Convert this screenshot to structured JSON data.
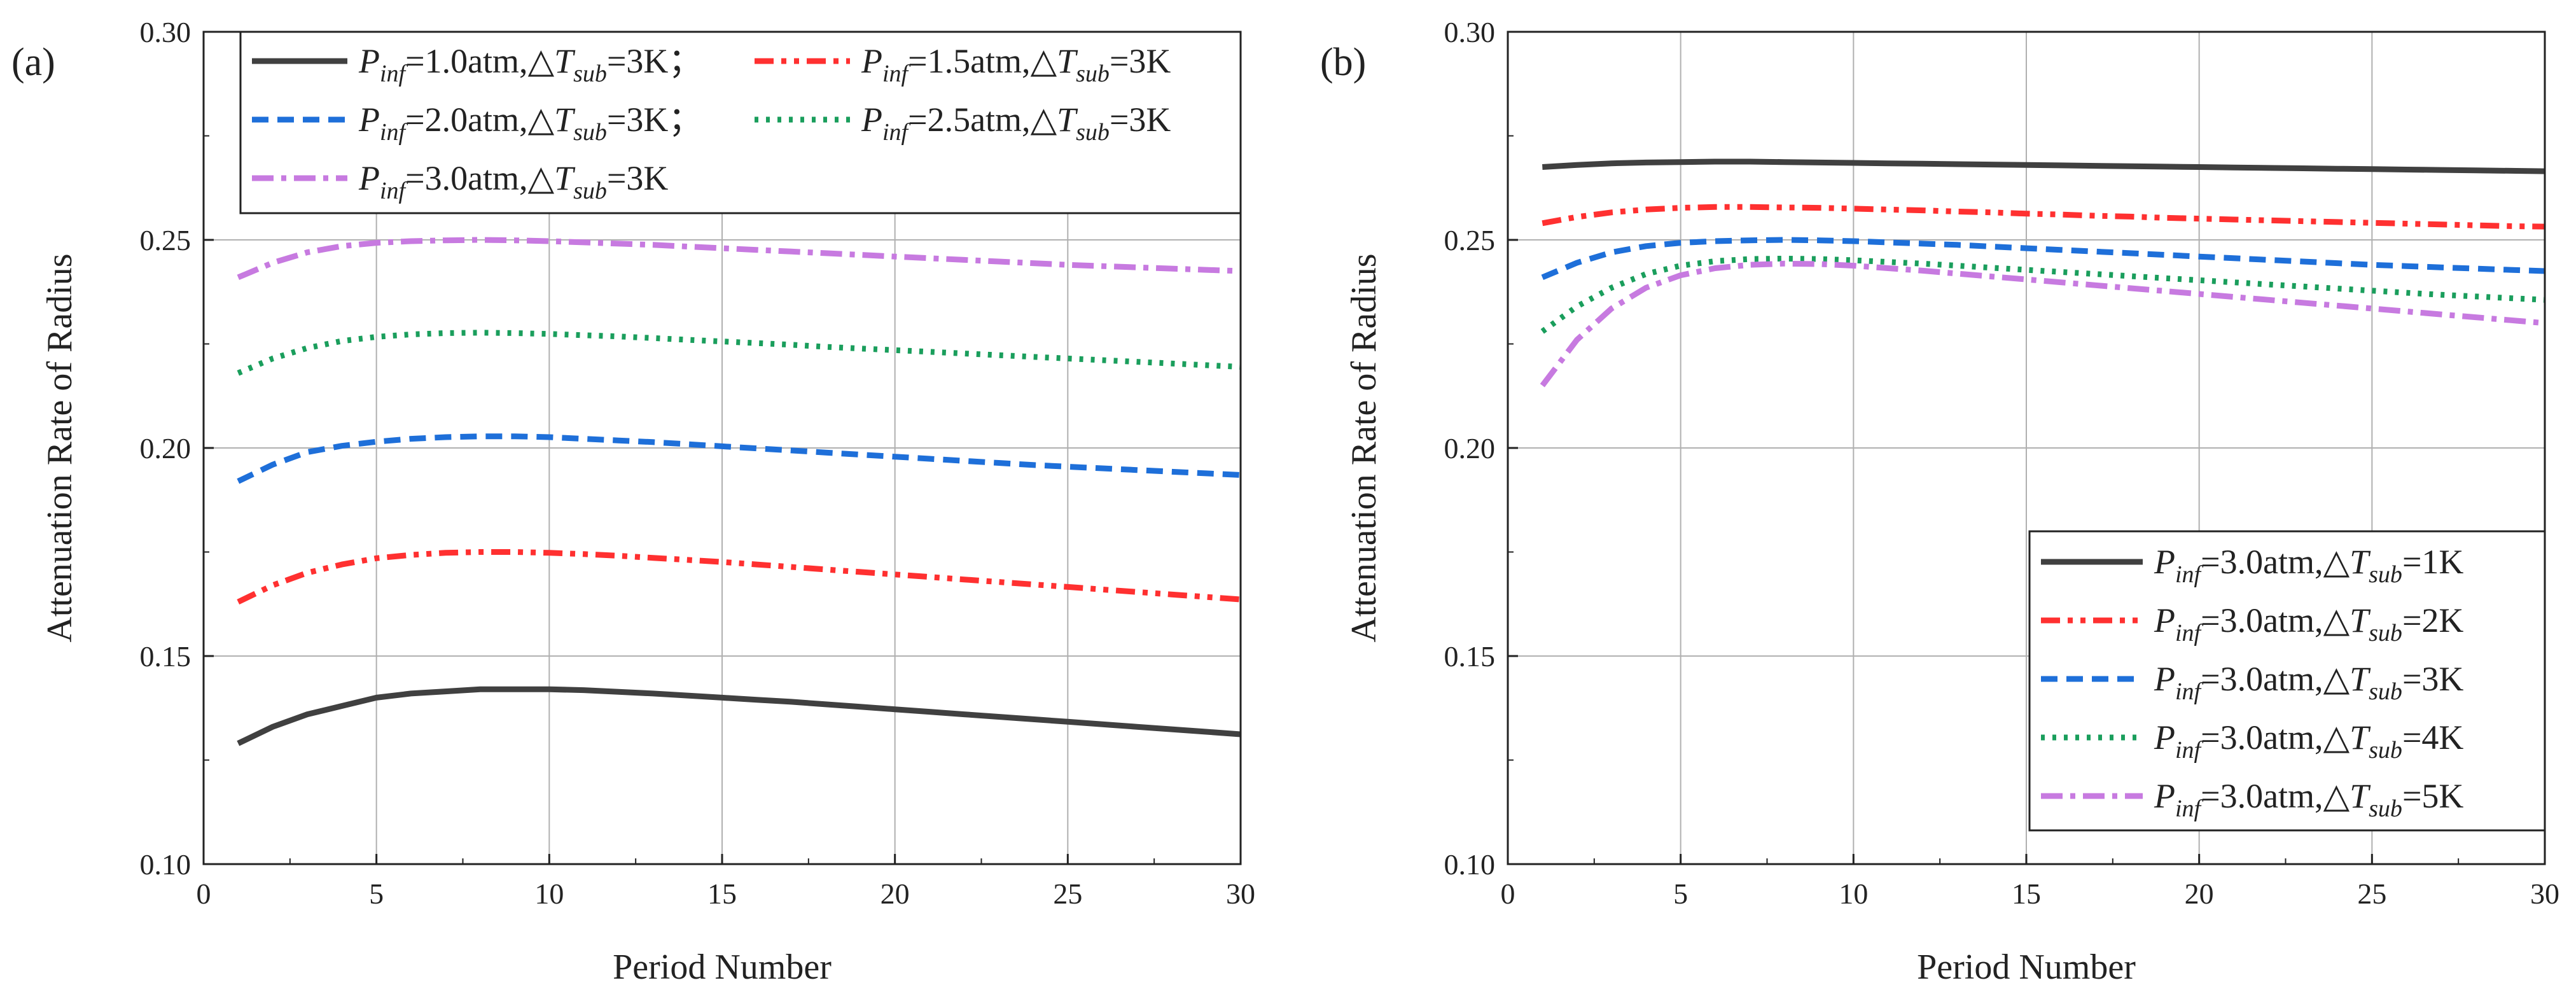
{
  "chart_data": [
    {
      "panel_label": "(a)",
      "type": "line",
      "xlabel": "Period Number",
      "ylabel": "Attenuation Rate of Radius",
      "xlim": [
        0,
        30
      ],
      "ylim": [
        0.1,
        0.3
      ],
      "xticks": [
        "0",
        "5",
        "10",
        "15",
        "20",
        "25",
        "30"
      ],
      "yticks": [
        "0.10",
        "0.15",
        "0.20",
        "0.25",
        "0.30"
      ],
      "x": [
        1,
        2,
        3,
        4,
        5,
        6,
        7,
        8,
        9,
        10,
        11,
        12,
        13,
        14,
        15,
        16,
        17,
        18,
        19,
        20,
        21,
        22,
        23,
        24,
        25,
        26,
        27,
        28,
        29,
        30
      ],
      "grid": true,
      "legend_position": "top",
      "series": [
        {
          "name": "Pinf=1.0atm,ΔTsub=3K",
          "legend": {
            "p": "P",
            "p_sub": "inf",
            "pressure": "=1.0atm,",
            "delta": "△",
            "t": "T",
            "t_sub": "sub",
            "temp": "=3K",
            "suffix": "；"
          },
          "color": "#404040",
          "dash": "solid",
          "values": [
            0.129,
            0.133,
            0.136,
            0.138,
            0.14,
            0.141,
            0.1415,
            0.142,
            0.142,
            0.142,
            0.1418,
            0.1414,
            0.141,
            0.1405,
            0.14,
            0.1395,
            0.139,
            0.1384,
            0.1378,
            0.1372,
            0.1366,
            0.136,
            0.1354,
            0.1348,
            0.1342,
            0.1336,
            0.133,
            0.1324,
            0.1318,
            0.1312
          ]
        },
        {
          "name": "Pinf=1.5atm,ΔTsub=3K",
          "legend": {
            "p": "P",
            "p_sub": "inf",
            "pressure": "=1.5atm,",
            "delta": "△",
            "t": "T",
            "t_sub": "sub",
            "temp": "=3K",
            "suffix": ""
          },
          "color": "#ff3030",
          "dash": "dashdotdot",
          "values": [
            0.163,
            0.167,
            0.17,
            0.172,
            0.1735,
            0.1743,
            0.1748,
            0.175,
            0.175,
            0.1748,
            0.1745,
            0.1741,
            0.1736,
            0.1731,
            0.1726,
            0.172,
            0.1714,
            0.1708,
            0.1702,
            0.1696,
            0.169,
            0.1684,
            0.1678,
            0.1672,
            0.1666,
            0.166,
            0.1654,
            0.1648,
            0.1642,
            0.1636
          ]
        },
        {
          "name": "Pinf=2.0atm,ΔTsub=3K",
          "legend": {
            "p": "P",
            "p_sub": "inf",
            "pressure": "=2.0atm,",
            "delta": "△",
            "t": "T",
            "t_sub": "sub",
            "temp": "=3K",
            "suffix": "；"
          },
          "color": "#1e6fd9",
          "dash": "dash",
          "values": [
            0.192,
            0.196,
            0.199,
            0.2005,
            0.2015,
            0.2022,
            0.2026,
            0.2028,
            0.2028,
            0.2026,
            0.2022,
            0.2018,
            0.2014,
            0.2009,
            0.2004,
            0.1999,
            0.1994,
            0.1989,
            0.1984,
            0.1979,
            0.1974,
            0.1969,
            0.1964,
            0.1959,
            0.1955,
            0.1951,
            0.1947,
            0.1943,
            0.1939,
            0.1935
          ]
        },
        {
          "name": "Pinf=2.5atm,ΔTsub=3K",
          "legend": {
            "p": "P",
            "p_sub": "inf",
            "pressure": "=2.5atm,",
            "delta": "△",
            "t": "T",
            "t_sub": "sub",
            "temp": "=3K",
            "suffix": ""
          },
          "color": "#1a9e5c",
          "dash": "dot",
          "values": [
            0.218,
            0.2215,
            0.224,
            0.2257,
            0.2267,
            0.2273,
            0.2276,
            0.2277,
            0.2276,
            0.2274,
            0.2271,
            0.2268,
            0.2264,
            0.226,
            0.2256,
            0.2252,
            0.2248,
            0.2243,
            0.2239,
            0.2235,
            0.2231,
            0.2227,
            0.2223,
            0.2219,
            0.2215,
            0.2211,
            0.2207,
            0.2203,
            0.2199,
            0.2195
          ]
        },
        {
          "name": "Pinf=3.0atm,ΔTsub=3K",
          "legend": {
            "p": "P",
            "p_sub": "inf",
            "pressure": "=3.0atm,",
            "delta": "△",
            "t": "T",
            "t_sub": "sub",
            "temp": "=3K",
            "suffix": ""
          },
          "color": "#c77ae0",
          "dash": "dashdot",
          "values": [
            0.241,
            0.2445,
            0.247,
            0.2485,
            0.2493,
            0.2497,
            0.2499,
            0.25,
            0.2499,
            0.2497,
            0.2494,
            0.2491,
            0.2488,
            0.2484,
            0.248,
            0.2476,
            0.2472,
            0.2468,
            0.2464,
            0.246,
            0.2456,
            0.2452,
            0.2448,
            0.2444,
            0.244,
            0.2437,
            0.2434,
            0.2431,
            0.2428,
            0.2425
          ]
        }
      ]
    },
    {
      "panel_label": "(b)",
      "type": "line",
      "xlabel": "Period Number",
      "ylabel": "Attenuation Rate of Radius",
      "xlim": [
        0,
        30
      ],
      "ylim": [
        0.1,
        0.3
      ],
      "xticks": [
        "0",
        "5",
        "10",
        "15",
        "20",
        "25",
        "30"
      ],
      "yticks": [
        "0.10",
        "0.15",
        "0.20",
        "0.25",
        "0.30"
      ],
      "x": [
        1,
        2,
        3,
        4,
        5,
        6,
        7,
        8,
        9,
        10,
        11,
        12,
        13,
        14,
        15,
        16,
        17,
        18,
        19,
        20,
        21,
        22,
        23,
        24,
        25,
        26,
        27,
        28,
        29,
        30
      ],
      "grid": true,
      "legend_position": "bottom-right",
      "series": [
        {
          "name": "Pinf=3.0atm,ΔTsub=1K",
          "legend": {
            "p": "P",
            "p_sub": "inf",
            "pressure": "=3.0atm,",
            "delta": "△",
            "t": "T",
            "t_sub": "sub",
            "temp": "=1K",
            "suffix": ""
          },
          "color": "#404040",
          "dash": "solid",
          "values": [
            0.2675,
            0.268,
            0.2684,
            0.2686,
            0.2687,
            0.2688,
            0.2688,
            0.2687,
            0.2686,
            0.2685,
            0.2684,
            0.2683,
            0.2682,
            0.2681,
            0.268,
            0.2679,
            0.2678,
            0.2677,
            0.2676,
            0.2675,
            0.2674,
            0.2673,
            0.2672,
            0.2671,
            0.267,
            0.2669,
            0.2668,
            0.2667,
            0.2666,
            0.2665
          ]
        },
        {
          "name": "Pinf=3.0atm,ΔTsub=2K",
          "legend": {
            "p": "P",
            "p_sub": "inf",
            "pressure": "=3.0atm,",
            "delta": "△",
            "t": "T",
            "t_sub": "sub",
            "temp": "=2K",
            "suffix": ""
          },
          "color": "#ff3030",
          "dash": "dashdotdot",
          "values": [
            0.254,
            0.2555,
            0.2566,
            0.2573,
            0.2577,
            0.2579,
            0.2579,
            0.2578,
            0.2577,
            0.2575,
            0.2573,
            0.2571,
            0.2568,
            0.2566,
            0.2563,
            0.2561,
            0.2558,
            0.2556,
            0.2553,
            0.2551,
            0.2549,
            0.2547,
            0.2545,
            0.2543,
            0.2541,
            0.2539,
            0.2537,
            0.2535,
            0.2533,
            0.2532
          ]
        },
        {
          "name": "Pinf=3.0atm,ΔTsub=3K",
          "legend": {
            "p": "P",
            "p_sub": "inf",
            "pressure": "=3.0atm,",
            "delta": "△",
            "t": "T",
            "t_sub": "sub",
            "temp": "=3K",
            "suffix": ""
          },
          "color": "#1e6fd9",
          "dash": "dash",
          "values": [
            0.241,
            0.2445,
            0.247,
            0.2485,
            0.2493,
            0.2497,
            0.2499,
            0.25,
            0.2499,
            0.2497,
            0.2494,
            0.2491,
            0.2488,
            0.2484,
            0.248,
            0.2476,
            0.2472,
            0.2468,
            0.2464,
            0.246,
            0.2456,
            0.2452,
            0.2448,
            0.2444,
            0.244,
            0.2437,
            0.2434,
            0.2431,
            0.2428,
            0.2425
          ]
        },
        {
          "name": "Pinf=3.0atm,ΔTsub=4K",
          "legend": {
            "p": "P",
            "p_sub": "inf",
            "pressure": "=3.0atm,",
            "delta": "△",
            "t": "T",
            "t_sub": "sub",
            "temp": "=4K",
            "suffix": ""
          },
          "color": "#1a9e5c",
          "dash": "dot",
          "values": [
            0.228,
            0.234,
            0.2385,
            0.2418,
            0.2438,
            0.2449,
            0.2454,
            0.2455,
            0.2454,
            0.2451,
            0.2447,
            0.2443,
            0.2438,
            0.2433,
            0.2428,
            0.2423,
            0.2418,
            0.2413,
            0.2408,
            0.2403,
            0.2398,
            0.2393,
            0.2388,
            0.2383,
            0.2378,
            0.2373,
            0.2368,
            0.2364,
            0.236,
            0.2356
          ]
        },
        {
          "name": "Pinf=3.0atm,ΔTsub=5K",
          "legend": {
            "p": "P",
            "p_sub": "inf",
            "pressure": "=3.0atm,",
            "delta": "△",
            "t": "T",
            "t_sub": "sub",
            "temp": "=5K",
            "suffix": ""
          },
          "color": "#c77ae0",
          "dash": "dashdot",
          "values": [
            0.215,
            0.226,
            0.2335,
            0.2385,
            0.2415,
            0.2432,
            0.244,
            0.2443,
            0.2442,
            0.2438,
            0.2432,
            0.2426,
            0.2419,
            0.2412,
            0.2405,
            0.2398,
            0.2391,
            0.2384,
            0.2377,
            0.237,
            0.2363,
            0.2356,
            0.2349,
            0.2342,
            0.2335,
            0.2328,
            0.2321,
            0.2314,
            0.2307,
            0.23
          ]
        }
      ]
    }
  ]
}
